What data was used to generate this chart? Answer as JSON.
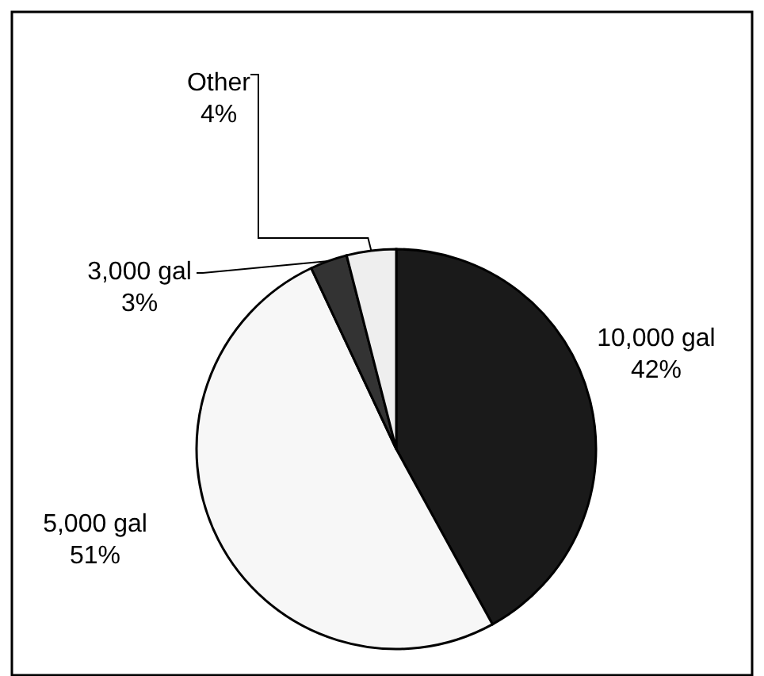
{
  "chart_data": {
    "type": "pie",
    "categories": [
      "10,000 gal",
      "5,000 gal",
      "3,000 gal",
      "Other"
    ],
    "values": [
      42,
      51,
      3,
      4
    ],
    "value_labels": [
      "42%",
      "51%",
      "3%",
      "4%"
    ],
    "colors": [
      "#1a1a1a",
      "#f7f7f7",
      "#333333",
      "#eeeeee"
    ]
  }
}
